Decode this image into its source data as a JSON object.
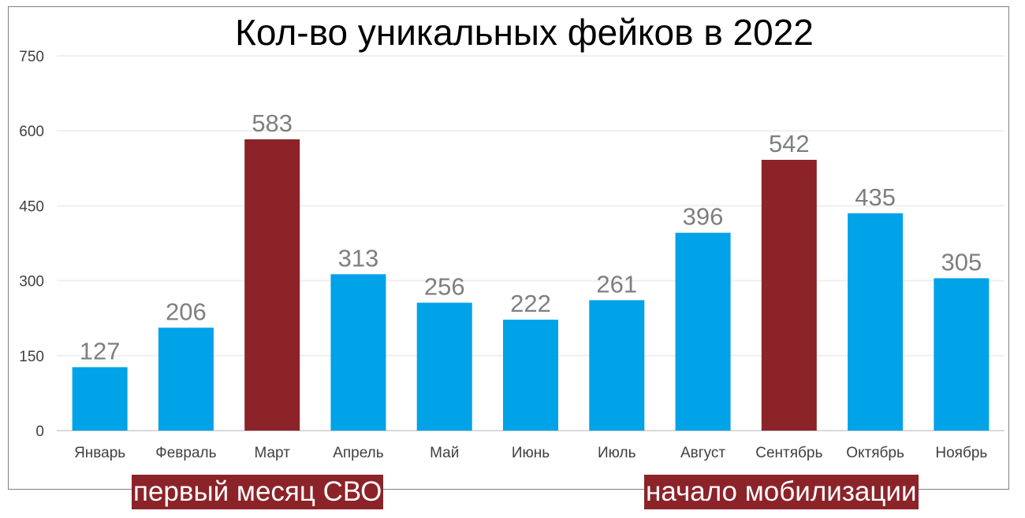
{
  "chart_data": {
    "type": "bar",
    "title": "Кол-во уникальных фейков в 2022",
    "categories": [
      "Январь",
      "Февраль",
      "Март",
      "Апрель",
      "Май",
      "Июнь",
      "Июль",
      "Август",
      "Сентябрь",
      "Октябрь",
      "Ноябрь"
    ],
    "values": [
      127,
      206,
      583,
      313,
      256,
      222,
      261,
      396,
      542,
      435,
      305
    ],
    "highlighted": [
      "Март",
      "Сентябрь"
    ],
    "ylim": [
      0,
      750
    ],
    "yticks": [
      0,
      150,
      300,
      450,
      600,
      750
    ],
    "grid": true,
    "xlabel": "",
    "ylabel": ""
  },
  "colors": {
    "bar": "#00a2e8",
    "highlight": "#8b2329",
    "data_label": "#7f7f7f",
    "axis_text": "#404040"
  },
  "annotations": {
    "left": "первый месяц СВО",
    "right": "начало мобилизации"
  }
}
